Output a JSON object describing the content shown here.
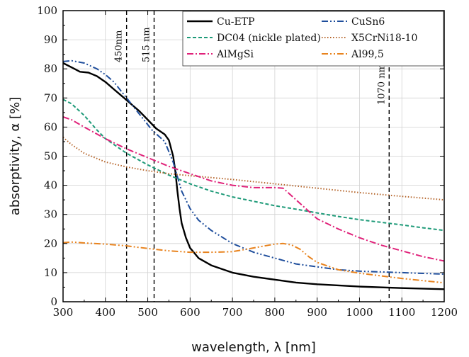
{
  "chart_data": {
    "type": "line",
    "xlabel": "wavelength, λ [nm]",
    "ylabel": "absorptivity, α [%]",
    "xlim": [
      300,
      1200
    ],
    "ylim": [
      0,
      100
    ],
    "x_ticks": [
      300,
      400,
      500,
      600,
      700,
      800,
      900,
      1000,
      1100,
      1200
    ],
    "y_ticks": [
      0,
      10,
      20,
      30,
      40,
      50,
      60,
      70,
      80,
      90,
      100
    ],
    "grid": true,
    "legend_position": "top-right",
    "series": [
      {
        "name": "Cu-ETP",
        "color": "#000000",
        "dash": "solid",
        "x": [
          300,
          320,
          340,
          360,
          380,
          400,
          420,
          440,
          460,
          480,
          500,
          520,
          540,
          550,
          560,
          565,
          570,
          575,
          580,
          590,
          600,
          620,
          650,
          700,
          750,
          800,
          850,
          900,
          1000,
          1100,
          1200
        ],
        "y": [
          82,
          80.5,
          79,
          78.7,
          77.5,
          75.5,
          73,
          70.5,
          68,
          65.5,
          62.5,
          59.5,
          57.5,
          55.5,
          50,
          45,
          38,
          32,
          27,
          22,
          18.5,
          15,
          12.5,
          10,
          8.6,
          7.6,
          6.6,
          6,
          5.2,
          4.7,
          4.3
        ]
      },
      {
        "name": "CuSn6",
        "color": "#1f4e9c",
        "dash": "dashdotdot",
        "x": [
          300,
          320,
          350,
          380,
          400,
          420,
          450,
          480,
          510,
          540,
          560,
          580,
          600,
          620,
          650,
          700,
          750,
          800,
          850,
          900,
          950,
          1000,
          1100,
          1200
        ],
        "y": [
          82.5,
          82.8,
          82,
          80,
          78,
          75.5,
          70,
          64.5,
          59,
          55,
          48,
          38,
          32,
          28,
          24.5,
          20,
          17,
          15,
          13,
          12,
          11,
          10.5,
          10,
          9.5
        ]
      },
      {
        "name": "DC04 (nickle plated)",
        "color": "#1d9a78",
        "dash": "dash",
        "x": [
          300,
          320,
          350,
          380,
          400,
          450,
          500,
          550,
          600,
          650,
          700,
          750,
          800,
          850,
          900,
          950,
          1000,
          1050,
          1100,
          1150,
          1200
        ],
        "y": [
          69.5,
          68,
          64,
          59,
          56,
          51,
          47,
          43.5,
          40.5,
          38,
          36,
          34.5,
          33,
          31.8,
          30.5,
          29.3,
          28.2,
          27.3,
          26.4,
          25.4,
          24.5
        ]
      },
      {
        "name": "X5CrNi18-10",
        "color": "#b5652b",
        "dash": "dot",
        "x": [
          300,
          320,
          350,
          400,
          450,
          500,
          550,
          600,
          700,
          800,
          900,
          1000,
          1100,
          1200
        ],
        "y": [
          56.5,
          54,
          51,
          48,
          46.3,
          45,
          44,
          43.3,
          42,
          40.5,
          39,
          37.5,
          36.2,
          35
        ]
      },
      {
        "name": "AlMgSi",
        "color": "#e0227a",
        "dash": "dashdot",
        "x": [
          300,
          320,
          350,
          400,
          450,
          500,
          550,
          600,
          650,
          700,
          750,
          800,
          820,
          850,
          900,
          950,
          1000,
          1050,
          1100,
          1150,
          1200
        ],
        "y": [
          63.5,
          62.5,
          60,
          56,
          52.5,
          49.5,
          46.5,
          44,
          41.5,
          40,
          39.2,
          39.2,
          39,
          35,
          28.5,
          25,
          22,
          19.5,
          17.5,
          15.5,
          14
        ]
      },
      {
        "name": "Al99,5",
        "color": "#e8831e",
        "dash": "dashdotdot",
        "x": [
          300,
          320,
          350,
          400,
          450,
          500,
          550,
          600,
          650,
          700,
          750,
          800,
          820,
          840,
          860,
          880,
          900,
          950,
          1000,
          1100,
          1200
        ],
        "y": [
          20.3,
          20.5,
          20.2,
          19.8,
          19.2,
          18.3,
          17.5,
          17,
          17,
          17.2,
          18.5,
          19.8,
          20,
          19.5,
          18,
          15.5,
          13.5,
          11,
          9.8,
          8,
          6.5
        ]
      }
    ],
    "annotations": [
      {
        "x": 450,
        "label": "450nm"
      },
      {
        "x": 515,
        "label": "515 nm"
      },
      {
        "x": 1070,
        "label": "1070 nm"
      }
    ]
  }
}
